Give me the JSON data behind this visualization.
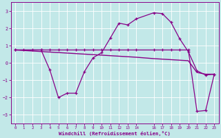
{
  "xlabel": "Windchill (Refroidissement éolien,°C)",
  "xlim": [
    -0.5,
    23.5
  ],
  "ylim": [
    -3.5,
    3.5
  ],
  "yticks": [
    -3,
    -2,
    -1,
    0,
    1,
    2,
    3
  ],
  "xticks": [
    0,
    1,
    2,
    3,
    4,
    5,
    6,
    7,
    8,
    9,
    10,
    11,
    12,
    13,
    14,
    16,
    17,
    18,
    19,
    20,
    21,
    22,
    23
  ],
  "bg_color": "#c2e8e8",
  "line_color": "#880088",
  "grid_color": "#aad4d4",
  "line1_x": [
    0,
    1,
    2,
    3,
    4,
    5,
    6,
    7,
    8,
    9,
    10,
    11,
    12,
    13,
    14,
    16,
    17,
    18,
    19,
    20,
    21,
    22,
    23
  ],
  "line1_y": [
    0.75,
    0.75,
    0.75,
    0.75,
    -0.4,
    -2.0,
    -1.75,
    -1.75,
    -0.5,
    0.3,
    0.6,
    1.45,
    2.3,
    2.2,
    2.55,
    2.9,
    2.85,
    2.35,
    1.4,
    0.65,
    -0.45,
    -0.7,
    -0.65
  ],
  "line2_x": [
    0,
    1,
    2,
    3,
    4,
    5,
    6,
    7,
    8,
    9,
    10,
    11,
    12,
    13,
    14,
    16,
    17,
    18,
    19,
    20,
    21,
    22,
    23
  ],
  "line2_y": [
    0.75,
    0.72,
    0.69,
    0.66,
    0.63,
    0.6,
    0.57,
    0.54,
    0.51,
    0.48,
    0.45,
    0.42,
    0.39,
    0.36,
    0.33,
    0.25,
    0.22,
    0.19,
    0.16,
    0.13,
    -0.55,
    -0.65,
    -0.65
  ],
  "line3_x": [
    0,
    3,
    4,
    5,
    6,
    7,
    8,
    9,
    10,
    11,
    12,
    13,
    14,
    16,
    17,
    18,
    19,
    20,
    21,
    22,
    23
  ],
  "line3_y": [
    0.75,
    0.75,
    0.75,
    0.75,
    0.75,
    0.75,
    0.75,
    0.75,
    0.75,
    0.75,
    0.75,
    0.75,
    0.75,
    0.75,
    0.75,
    0.75,
    0.75,
    0.75,
    -2.8,
    -2.75,
    -0.65
  ]
}
